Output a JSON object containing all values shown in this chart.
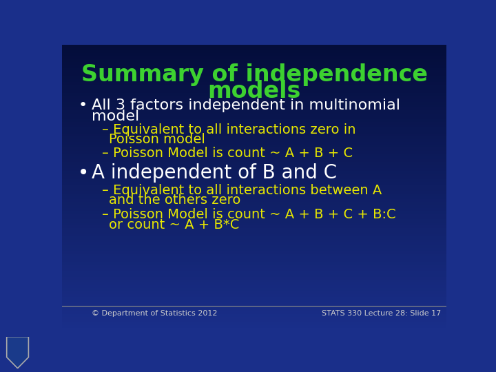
{
  "title_line1": "Summary of independence",
  "title_line2": "models",
  "title_color": "#3dd130",
  "background_top": "#1a2f8a",
  "background_bottom": "#040d3a",
  "bullet_color": "#ffffff",
  "sub_color": "#e8e800",
  "bullet2_color": "#ffffff",
  "footer_left": "© Department of Statistics 2012",
  "footer_right": "STATS 330 Lecture 28: Slide 17",
  "footer_color": "#cccccc",
  "title_fontsize": 24,
  "main_fontsize": 16,
  "sub_fontsize": 14,
  "bullet2_fontsize": 20
}
